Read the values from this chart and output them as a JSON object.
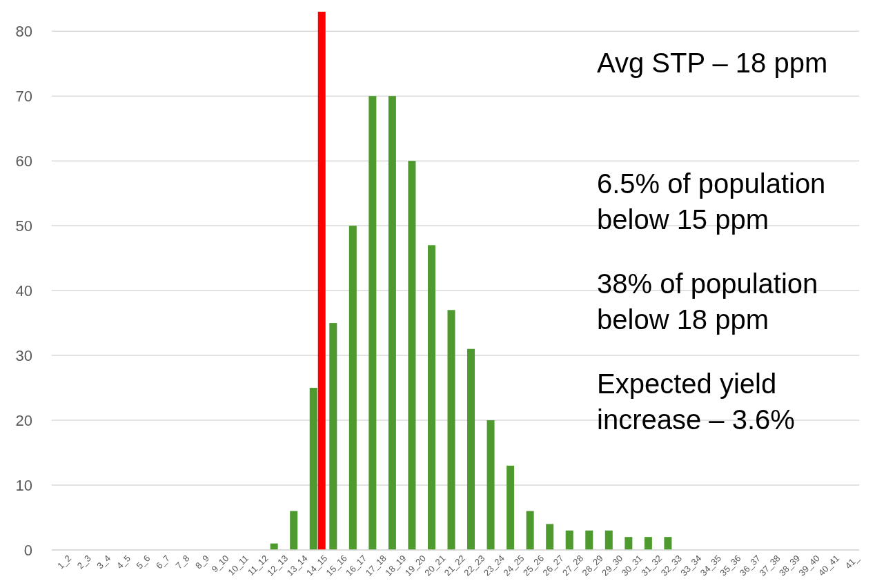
{
  "chart_data": {
    "type": "bar",
    "categories": [
      "1_2",
      "2_3",
      "3_4",
      "4_5",
      "5_6",
      "6_7",
      "7_8",
      "8_9",
      "9_10",
      "10_11",
      "11_12",
      "12_13",
      "13_14",
      "14_15",
      "15_16",
      "16_17",
      "17_18",
      "18_19",
      "19_20",
      "20_21",
      "21_22",
      "22_23",
      "23_24",
      "24_25",
      "25_26",
      "26_27",
      "27_28",
      "28_29",
      "29_30",
      "30_31",
      "31_32",
      "32_33",
      "33_34",
      "34_35",
      "35_36",
      "36_37",
      "37_38",
      "38_39",
      "39_40",
      "40_41",
      "41_"
    ],
    "series": [
      {
        "color": "#4e9a2f",
        "values": [
          0,
          0,
          0,
          0,
          0,
          0,
          0,
          0,
          0,
          0,
          0,
          1,
          6,
          25,
          35,
          50,
          70,
          70,
          60,
          47,
          37,
          31,
          20,
          13,
          6,
          4,
          3,
          3,
          3,
          2,
          2,
          2,
          0,
          0,
          0,
          0,
          0,
          0,
          0,
          0,
          0
        ]
      },
      {
        "color": "#ff0000",
        "values": [
          null,
          null,
          null,
          null,
          null,
          null,
          null,
          null,
          null,
          null,
          null,
          null,
          null,
          83,
          null,
          null,
          null,
          null,
          null,
          null,
          null,
          null,
          null,
          null,
          null,
          null,
          null,
          null,
          null,
          null,
          null,
          null,
          null,
          null,
          null,
          null,
          null,
          null,
          null,
          null,
          null
        ]
      }
    ],
    "ylim": [
      0,
      83
    ],
    "yticks": [
      0,
      10,
      20,
      30,
      40,
      50,
      60,
      70,
      80
    ],
    "grid": "y",
    "annotations": [
      "Avg STP – 18 ppm",
      "6.5% of population below 15 ppm",
      "38% of population below 18 ppm",
      "Expected yield increase – 3.6%"
    ]
  }
}
